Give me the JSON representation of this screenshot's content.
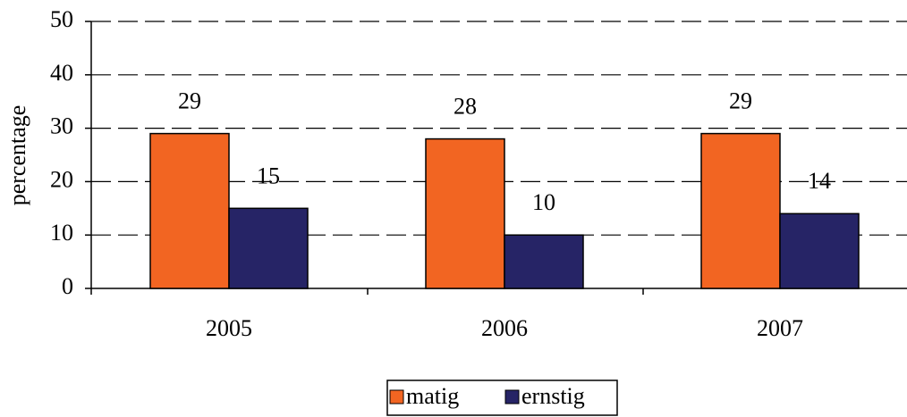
{
  "chart_data": {
    "type": "bar",
    "categories": [
      "2005",
      "2006",
      "2007"
    ],
    "series": [
      {
        "name": "matig",
        "color": "#f26522",
        "values": [
          29,
          28,
          29
        ]
      },
      {
        "name": "ernstig",
        "color": "#262466",
        "values": [
          15,
          10,
          14
        ]
      }
    ],
    "y_label": "percentage",
    "ylim": [
      0,
      50
    ],
    "yticks": [
      0,
      10,
      20,
      30,
      40,
      50
    ],
    "grid": true,
    "legend": "bottom"
  }
}
